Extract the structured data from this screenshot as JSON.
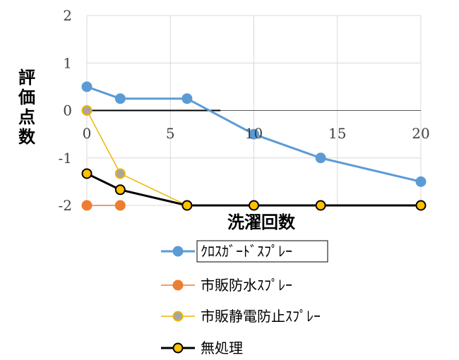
{
  "chart_data": {
    "type": "line",
    "xlabel": "洗濯回数",
    "ylabel": "評価点数",
    "xlim": [
      0,
      20
    ],
    "ylim": [
      -2,
      2
    ],
    "xticks": [
      "0",
      "5",
      "10",
      "15",
      "20"
    ],
    "yticks": [
      "2",
      "1",
      "0",
      "-1",
      "-2"
    ],
    "grid": true,
    "legend_position": "bottom",
    "series": [
      {
        "name": "ｸﾛｽｶﾞｰﾄﾞｽﾌﾟﾚｰ",
        "color": "#5b9bd5",
        "marker_fill": "#5b9bd5",
        "marker_edge": "#5b9bd5",
        "line_width": 3,
        "x": [
          0,
          2,
          6,
          10,
          14,
          20
        ],
        "y": [
          0.5,
          0.25,
          0.25,
          -0.5,
          -1,
          -1.5
        ]
      },
      {
        "name": "市販防水ｽﾌﾟﾚｰ",
        "color": "#ed7d31",
        "marker_fill": "#ed7d31",
        "marker_edge": "#ed7d31",
        "line_width": 1.5,
        "x": [
          0,
          2
        ],
        "y": [
          -2,
          -2
        ]
      },
      {
        "name": "市販静電防止ｽﾌﾟﾚｰ",
        "color": "#f0b400",
        "marker_fill": "#a5a5a5",
        "marker_edge": "#f0b400",
        "line_width": 1.5,
        "x": [
          0,
          2,
          6
        ],
        "y": [
          0,
          -1.33,
          -2
        ]
      },
      {
        "name": "無処理",
        "color": "#000000",
        "marker_fill": "#ffc000",
        "marker_edge": "#000000",
        "line_width": 3,
        "x": [
          0,
          2,
          6,
          10,
          14,
          20
        ],
        "y": [
          -1.33,
          -1.67,
          -2,
          -2,
          -2,
          -2
        ]
      }
    ]
  }
}
